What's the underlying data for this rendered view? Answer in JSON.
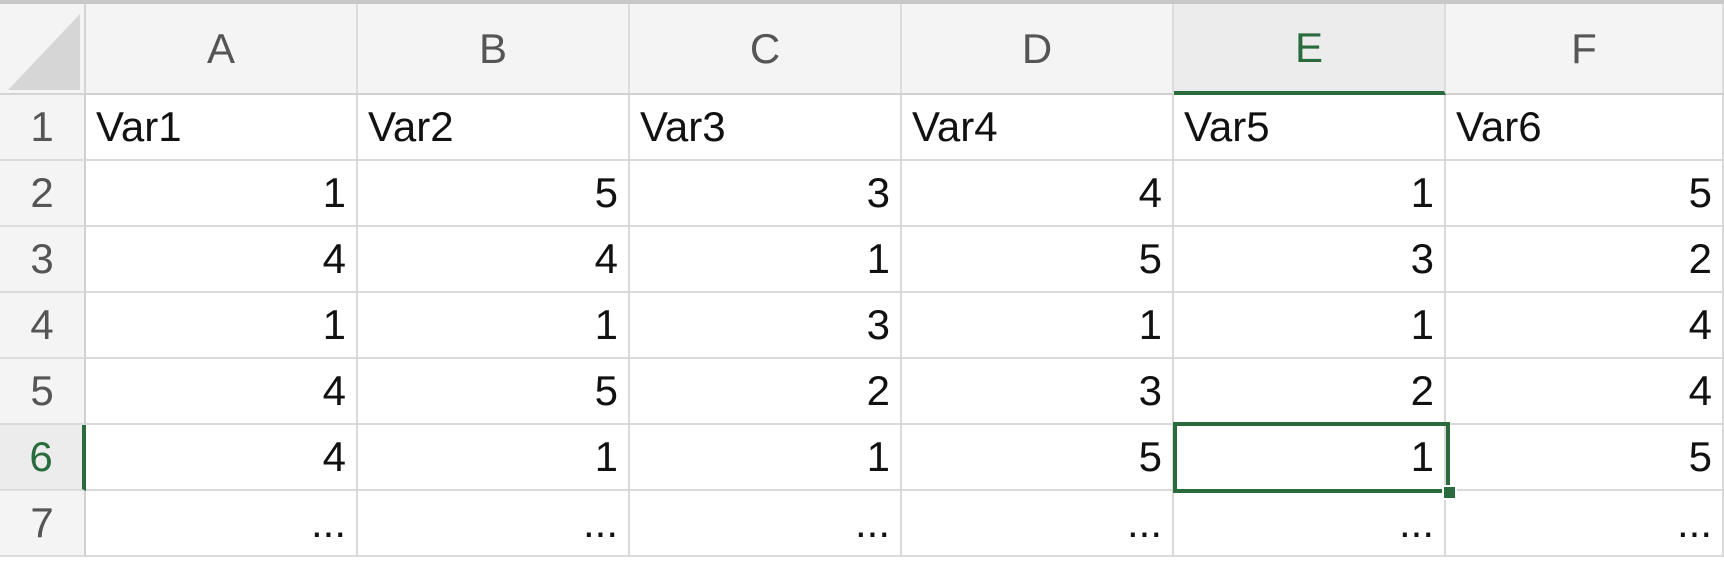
{
  "colors": {
    "accent": "#2a6b3e",
    "header_bg": "#f4f4f4",
    "gridline": "#d9d9d9"
  },
  "icons": {
    "select_all": "select-all-triangle-icon"
  },
  "selected_cell": "E6",
  "columns": [
    "A",
    "B",
    "C",
    "D",
    "E",
    "F"
  ],
  "rows": [
    "1",
    "2",
    "3",
    "4",
    "5",
    "6",
    "7"
  ],
  "cells": [
    [
      "Var1",
      "Var2",
      "Var3",
      "Var4",
      "Var5",
      "Var6"
    ],
    [
      "1",
      "5",
      "3",
      "4",
      "1",
      "5"
    ],
    [
      "4",
      "4",
      "1",
      "5",
      "3",
      "2"
    ],
    [
      "1",
      "1",
      "3",
      "1",
      "1",
      "4"
    ],
    [
      "4",
      "5",
      "2",
      "3",
      "2",
      "4"
    ],
    [
      "4",
      "1",
      "1",
      "5",
      "1",
      "5"
    ],
    [
      "...",
      "...",
      "...",
      "...",
      "...",
      "..."
    ]
  ]
}
